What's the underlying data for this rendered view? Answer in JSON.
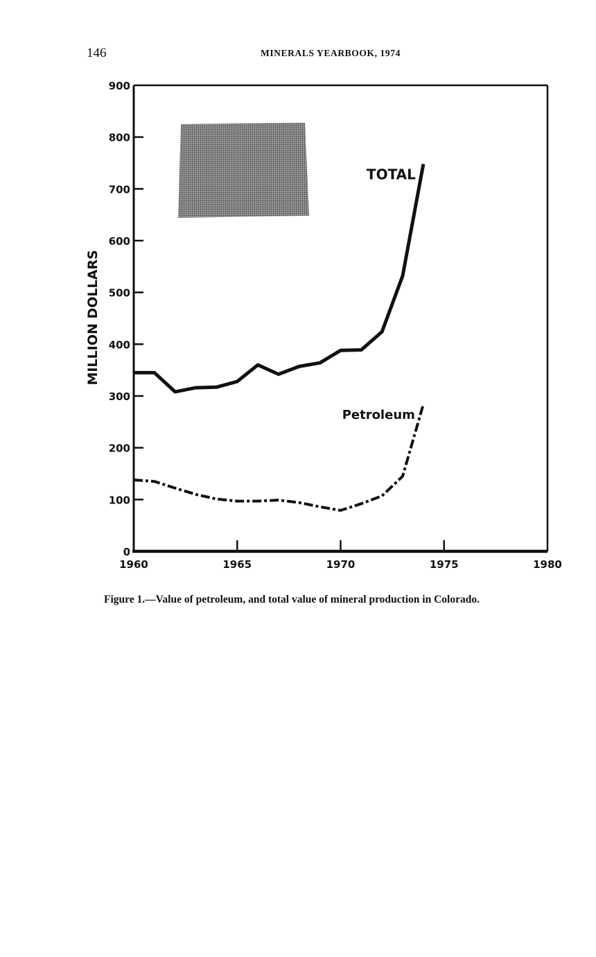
{
  "page": {
    "page_number": "146",
    "running_head": "MINERALS YEARBOOK, 1974",
    "caption": "Figure 1.—Value of petroleum, and total value of mineral production in Colorado."
  },
  "chart_data": {
    "type": "line",
    "title": "",
    "xlabel": "",
    "ylabel": "MILLION DOLLARS",
    "xlim": [
      1960,
      1980
    ],
    "ylim": [
      0,
      900
    ],
    "x_ticks": [
      1960,
      1965,
      1970,
      1975,
      1980
    ],
    "y_ticks": [
      0,
      100,
      200,
      300,
      400,
      500,
      600,
      700,
      800,
      900
    ],
    "grid": false,
    "legend": "none",
    "inset": "state-outline-colorado",
    "series": [
      {
        "name": "TOTAL",
        "style": "solid",
        "color": "#111111",
        "x": [
          1960,
          1961,
          1962,
          1963,
          1964,
          1965,
          1966,
          1967,
          1968,
          1969,
          1970,
          1971,
          1972,
          1973,
          1974
        ],
        "values": [
          345,
          345,
          308,
          316,
          317,
          328,
          360,
          342,
          357,
          364,
          388,
          389,
          424,
          532,
          748
        ]
      },
      {
        "name": "Petroleum",
        "style": "dash-dot",
        "color": "#111111",
        "x": [
          1960,
          1961,
          1962,
          1963,
          1964,
          1965,
          1966,
          1967,
          1968,
          1969,
          1970,
          1971,
          1972,
          1973,
          1974
        ],
        "values": [
          138,
          135,
          122,
          110,
          101,
          97,
          97,
          99,
          94,
          86,
          79,
          92,
          107,
          145,
          284
        ]
      }
    ]
  }
}
